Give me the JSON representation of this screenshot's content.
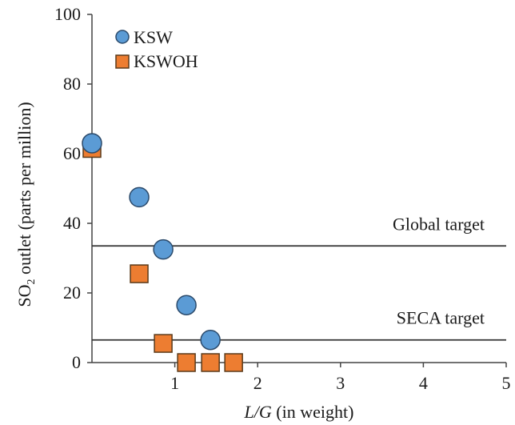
{
  "chart_data": {
    "type": "scatter",
    "xlabel_italic": "L/G",
    "xlabel_rest": " (in weight)",
    "ylabel_main": "SO",
    "ylabel_sub": "2",
    "ylabel_rest": " outlet (parts per million)",
    "xlim": [
      0,
      5
    ],
    "ylim": [
      0,
      100
    ],
    "x_ticks": [
      {
        "value": 1,
        "label": "1"
      },
      {
        "value": 2,
        "label": "2"
      },
      {
        "value": 3,
        "label": "3"
      },
      {
        "value": 4,
        "label": "4"
      },
      {
        "value": 5,
        "label": "5"
      }
    ],
    "y_ticks": [
      {
        "value": 0,
        "label": "0"
      },
      {
        "value": 20,
        "label": "20"
      },
      {
        "value": 40,
        "label": "40"
      },
      {
        "value": 60,
        "label": "60"
      },
      {
        "value": 80,
        "label": "80"
      },
      {
        "value": 100,
        "label": "100"
      }
    ],
    "series": [
      {
        "name": "KSW",
        "marker": "circle",
        "color": "#5b9bd5",
        "points": [
          {
            "x": 0.0,
            "y": 63
          },
          {
            "x": 0.57,
            "y": 47.5
          },
          {
            "x": 0.86,
            "y": 32.5
          },
          {
            "x": 1.14,
            "y": 16.5
          },
          {
            "x": 1.43,
            "y": 6.5
          }
        ]
      },
      {
        "name": "KSWOH",
        "marker": "square",
        "color": "#ed7d31",
        "points": [
          {
            "x": 0.0,
            "y": 61.5
          },
          {
            "x": 0.57,
            "y": 25.5
          },
          {
            "x": 0.86,
            "y": 5.5
          },
          {
            "x": 1.14,
            "y": 0
          },
          {
            "x": 1.43,
            "y": 0
          },
          {
            "x": 1.71,
            "y": 0
          }
        ]
      }
    ],
    "reference_lines": [
      {
        "name": "global-target",
        "label": "Global target",
        "y": 33.5
      },
      {
        "name": "seca-target",
        "label": "SECA target",
        "y": 6.5
      }
    ],
    "legend_position": "top-left",
    "grid": false
  }
}
